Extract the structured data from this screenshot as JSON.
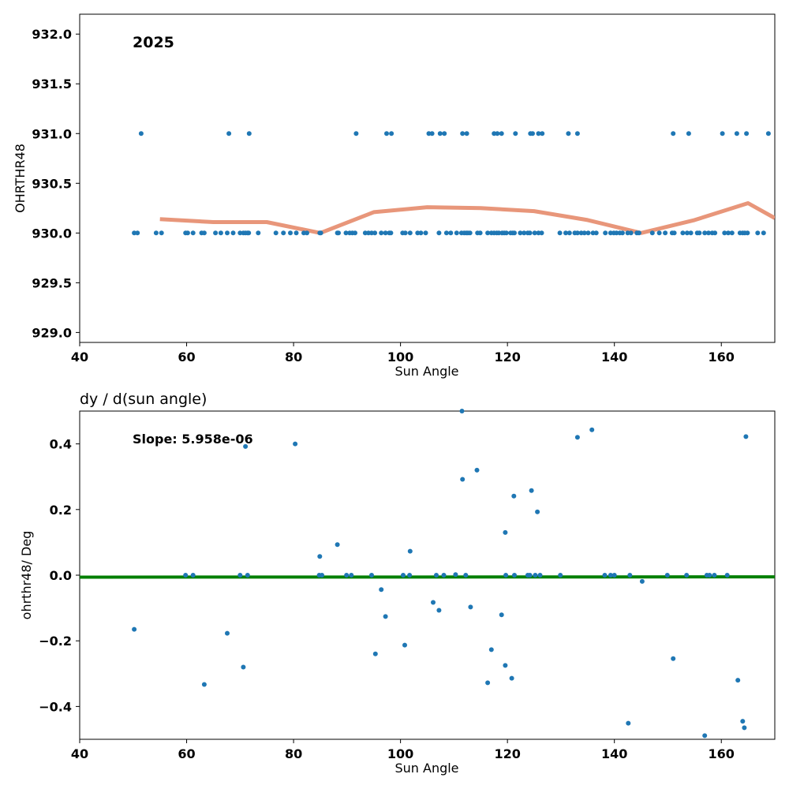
{
  "chart_data": [
    {
      "type": "scatter",
      "annotation": "2025",
      "title": "",
      "xlabel": "Sun Angle",
      "ylabel": "OHRTHR48",
      "xlim": [
        40,
        170
      ],
      "ylim": [
        928.9,
        932.2
      ],
      "xticks": [
        40,
        60,
        80,
        100,
        120,
        140,
        160
      ],
      "yticks": [
        929.0,
        929.5,
        930.0,
        930.5,
        931.0,
        931.5,
        932.0
      ],
      "ytick_labels": [
        "929.0",
        "929.5",
        "930.0",
        "930.5",
        "931.0",
        "931.5",
        "932.0"
      ],
      "grid": false,
      "colors": {
        "points": "#1f77b4",
        "trend": "#e8967a"
      },
      "series": [
        {
          "kind": "points",
          "x": [
            50.2,
            50.8,
            54.3,
            55.3,
            59.8,
            60.2,
            61.2,
            62.8,
            63.3,
            65.4,
            66.4,
            67.6,
            68.7,
            70.0,
            70.6,
            71.0,
            71.4,
            71.6,
            73.4,
            76.7,
            78.1,
            79.4,
            80.5,
            81.9,
            82.5,
            84.9,
            85.1,
            88.2,
            88.4,
            89.8,
            90.5,
            91.0,
            91.5,
            93.4,
            94.0,
            94.6,
            95.2,
            96.4,
            97.2,
            97.9,
            98.2,
            100.4,
            100.9,
            101.8,
            103.2,
            103.8,
            104.7,
            107.2,
            108.6,
            109.4,
            110.5,
            111.4,
            111.9,
            112.3,
            112.6,
            113.0,
            114.4,
            114.9,
            116.3,
            117.0,
            117.5,
            118.0,
            118.4,
            119.0,
            119.4,
            119.8,
            120.6,
            121.0,
            121.3,
            122.4,
            123.1,
            123.8,
            124.2,
            125.1,
            125.8,
            126.4,
            129.8,
            130.9,
            131.6,
            132.6,
            133.1,
            133.8,
            134.4,
            135.1,
            136.0,
            136.6,
            138.3,
            139.3,
            139.9,
            140.4,
            141.0,
            141.5,
            142.5,
            143.1,
            144.2,
            144.6,
            147.1,
            148.4,
            149.5,
            150.8,
            151.2,
            152.8,
            153.6,
            154.3,
            155.5,
            155.9,
            156.9,
            157.6,
            158.3,
            158.8,
            160.6,
            161.3,
            162.0,
            163.5,
            164.0,
            164.4,
            164.9,
            166.8,
            167.9
          ],
          "y": [
            930,
            930,
            930,
            930,
            930,
            930,
            930,
            930,
            930,
            930,
            930,
            930,
            930,
            930,
            930,
            930,
            930,
            930,
            930,
            930,
            930,
            930,
            930,
            930,
            930,
            930,
            930,
            930,
            930,
            930,
            930,
            930,
            930,
            930,
            930,
            930,
            930,
            930,
            930,
            930,
            930,
            930,
            930,
            930,
            930,
            930,
            930,
            930,
            930,
            930,
            930,
            930,
            930,
            930,
            930,
            930,
            930,
            930,
            930,
            930,
            930,
            930,
            930,
            930,
            930,
            930,
            930,
            930,
            930,
            930,
            930,
            930,
            930,
            930,
            930,
            930,
            930,
            930,
            930,
            930,
            930,
            930,
            930,
            930,
            930,
            930,
            930,
            930,
            930,
            930,
            930,
            930,
            930,
            930,
            930,
            930,
            930,
            930,
            930,
            930,
            930,
            930,
            930,
            930,
            930,
            930,
            930,
            930,
            930,
            930,
            930,
            930,
            930,
            930,
            930,
            930,
            930,
            930,
            930
          ]
        },
        {
          "kind": "points",
          "x": [
            51.5,
            67.9,
            71.7,
            91.7,
            97.4,
            98.3,
            105.3,
            105.9,
            107.4,
            108.2,
            111.6,
            112.4,
            117.5,
            118.1,
            118.9,
            121.5,
            124.3,
            124.7,
            125.8,
            126.5,
            131.4,
            133.1,
            151.0,
            153.9,
            160.2,
            162.9,
            164.7,
            168.8
          ],
          "y": [
            931,
            931,
            931,
            931,
            931,
            931,
            931,
            931,
            931,
            931,
            931,
            931,
            931,
            931,
            931,
            931,
            931,
            931,
            931,
            931,
            931,
            931,
            931,
            931,
            931,
            931,
            931,
            931
          ]
        },
        {
          "kind": "trend",
          "x": [
            55,
            65,
            75,
            85,
            95,
            105,
            115,
            125,
            135,
            145,
            155,
            165,
            170
          ],
          "y": [
            930.14,
            930.11,
            930.11,
            930.0,
            930.21,
            930.26,
            930.25,
            930.22,
            930.13,
            930.0,
            930.13,
            930.3,
            930.15
          ]
        }
      ]
    },
    {
      "type": "scatter",
      "title": "dy / d(sun angle)",
      "annotation": "Slope: 5.958e-06",
      "xlabel": "Sun Angle",
      "ylabel": "ohrthr48/ Deg",
      "xlim": [
        40,
        170
      ],
      "ylim": [
        -0.5,
        0.5
      ],
      "xticks": [
        40,
        60,
        80,
        100,
        120,
        140,
        160
      ],
      "yticks": [
        -0.4,
        -0.2,
        0.0,
        0.2,
        0.4
      ],
      "ytick_labels": [
        "−0.4",
        "−0.2",
        "0.0",
        "0.2",
        "0.4"
      ],
      "grid": false,
      "colors": {
        "points": "#1f77b4",
        "fit": "#007f00"
      },
      "series": [
        {
          "kind": "points",
          "x": [
            50.2,
            59.8,
            61.2,
            63.3,
            67.6,
            70.0,
            70.6,
            71.0,
            71.4,
            80.3,
            84.8,
            84.9,
            85.3,
            88.2,
            89.9,
            90.8,
            94.6,
            95.3,
            96.4,
            97.2,
            100.5,
            100.8,
            101.7,
            101.8,
            106.1,
            106.7,
            107.2,
            108.1,
            110.3,
            111.5,
            111.6,
            112.2,
            113.1,
            114.3,
            116.3,
            117.0,
            118.9,
            119.6,
            119.6,
            119.7,
            120.8,
            121.2,
            121.3,
            123.8,
            124.2,
            124.5,
            125.2,
            125.6,
            126.1,
            129.9,
            133.1,
            135.8,
            138.2,
            139.3,
            140.0,
            142.6,
            142.9,
            145.2,
            149.9,
            151.0,
            153.5,
            156.9,
            157.3,
            157.8,
            158.7,
            161.1,
            163.1,
            164.0,
            164.3,
            164.6
          ],
          "y": [
            -0.165,
            0.0,
            0.0,
            -0.333,
            -0.177,
            0.0,
            -0.28,
            0.392,
            0.0,
            0.4,
            0.0,
            0.057,
            0.0,
            0.093,
            0.0,
            0.0,
            0.0,
            -0.24,
            -0.044,
            -0.126,
            0.0,
            -0.213,
            0.0,
            0.073,
            -0.083,
            0.0,
            -0.107,
            0.0,
            0.002,
            0.5,
            0.292,
            0.0,
            -0.097,
            0.32,
            -0.328,
            -0.227,
            -0.121,
            0.13,
            -0.275,
            0.0,
            -0.314,
            0.241,
            0.0,
            0.0,
            0.0,
            0.258,
            0.0,
            0.193,
            0.0,
            0.0,
            0.42,
            0.443,
            0.0,
            0.0,
            0.0,
            -0.451,
            0.0,
            -0.019,
            0.0,
            -0.254,
            0.0,
            -0.489,
            0.0,
            0.0,
            0.0,
            0.0,
            -0.32,
            -0.445,
            -0.465,
            0.422
          ]
        },
        {
          "kind": "fit",
          "x": [
            40,
            170
          ],
          "y": [
            -0.006,
            -0.005
          ]
        }
      ]
    }
  ]
}
